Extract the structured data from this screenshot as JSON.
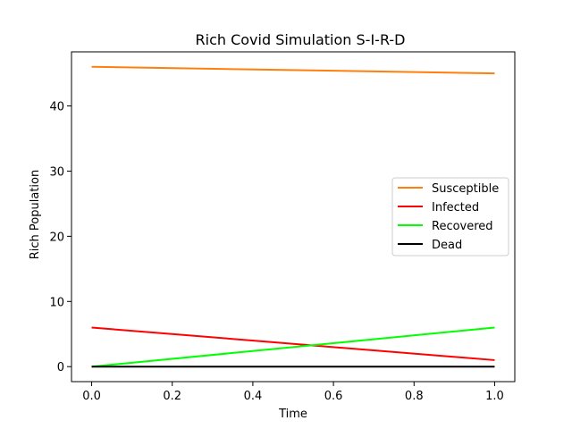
{
  "chart_data": {
    "type": "line",
    "title": "Rich Covid Simulation S-I-R-D",
    "xlabel": "Time",
    "ylabel": "Rich Population",
    "xlim": [
      -0.05,
      1.05
    ],
    "ylim": [
      -2.3,
      48.3
    ],
    "xticks": [
      0.0,
      0.2,
      0.4,
      0.6,
      0.8,
      1.0
    ],
    "xtick_labels": [
      "0.0",
      "0.2",
      "0.4",
      "0.6",
      "0.8",
      "1.0"
    ],
    "yticks": [
      0,
      10,
      20,
      30,
      40
    ],
    "ytick_labels": [
      "0",
      "10",
      "20",
      "30",
      "40"
    ],
    "grid": false,
    "legend_position": "center-right",
    "series": [
      {
        "name": "Susceptible",
        "color": "#ff7f0e",
        "x": [
          0.0,
          1.0
        ],
        "y": [
          46,
          45
        ]
      },
      {
        "name": "Infected",
        "color": "#ff0000",
        "x": [
          0.0,
          1.0
        ],
        "y": [
          6,
          1
        ]
      },
      {
        "name": "Recovered",
        "color": "#00ff00",
        "x": [
          0.0,
          1.0
        ],
        "y": [
          0,
          6
        ]
      },
      {
        "name": "Dead",
        "color": "#000000",
        "x": [
          0.0,
          1.0
        ],
        "y": [
          0,
          0
        ]
      }
    ]
  }
}
